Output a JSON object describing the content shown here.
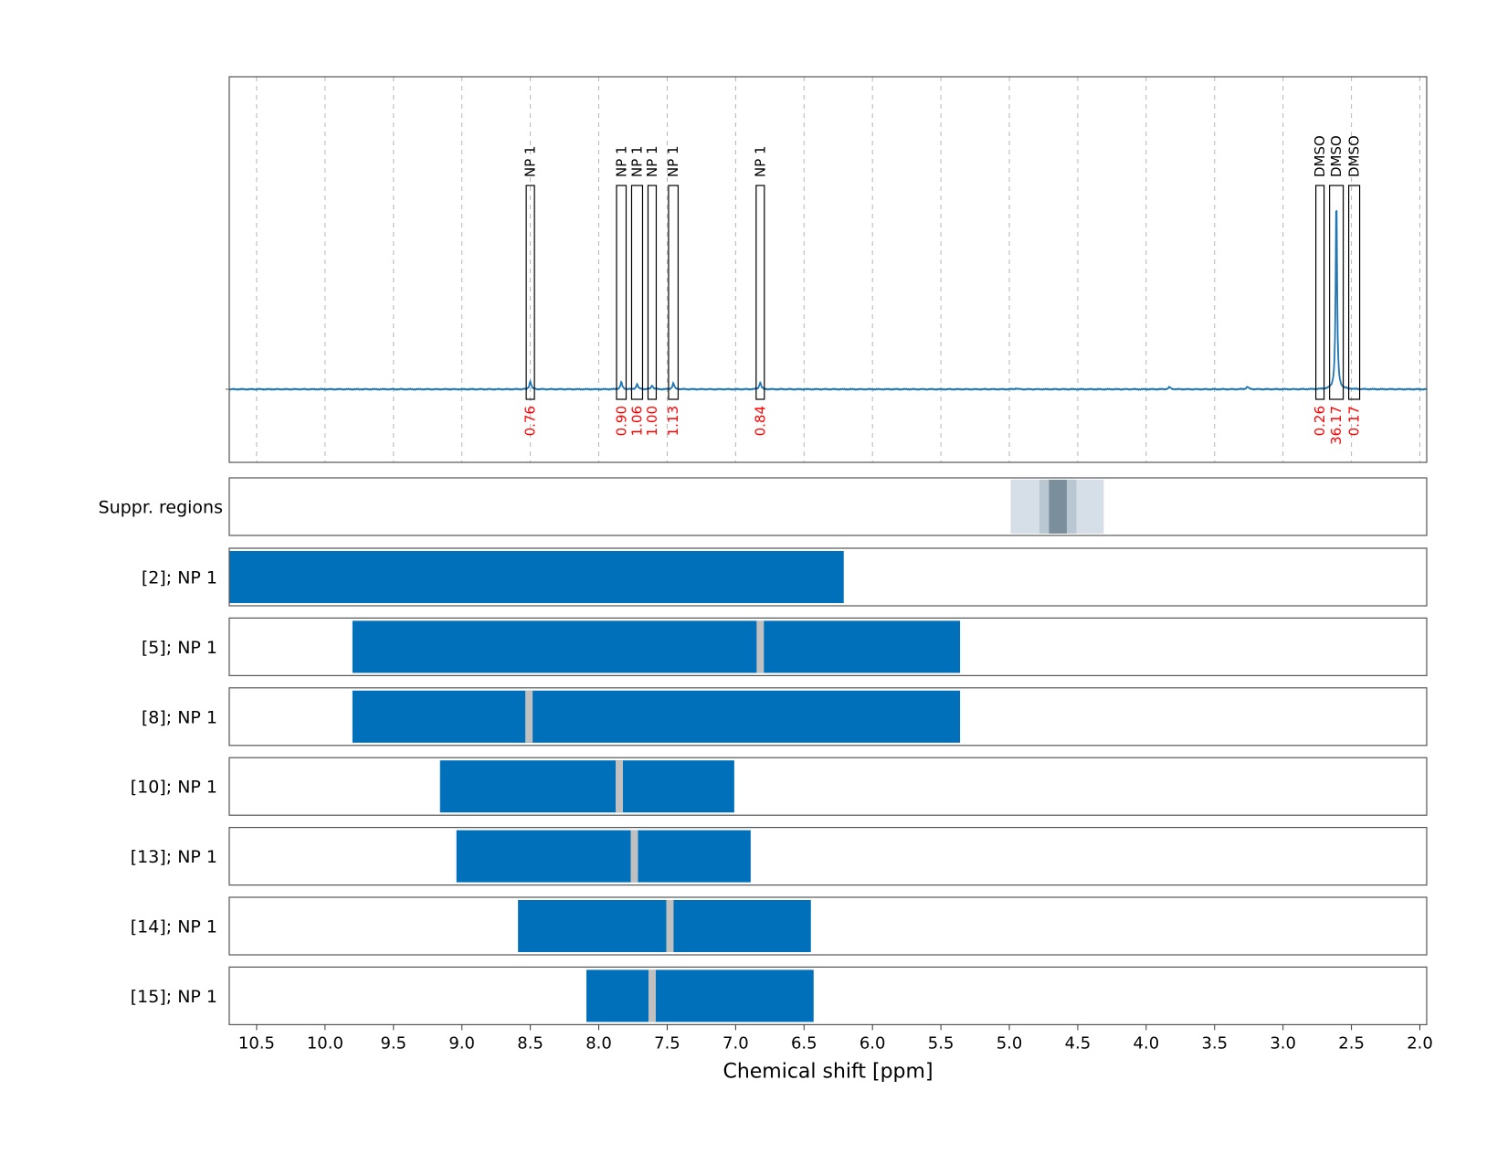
{
  "chart_data": {
    "type": "nmr-spectrum-with-ranges",
    "xlabel": "Chemical shift [ppm]",
    "xlim": [
      10.7,
      1.95
    ],
    "x_ticks": [
      "10.5",
      "10.0",
      "9.5",
      "9.0",
      "8.5",
      "8.0",
      "7.5",
      "7.0",
      "6.5",
      "6.0",
      "5.5",
      "5.0",
      "4.5",
      "4.0",
      "3.5",
      "3.0",
      "2.5",
      "2.0"
    ],
    "x_tick_values": [
      10.5,
      10.0,
      9.5,
      9.0,
      8.5,
      8.0,
      7.5,
      7.0,
      6.5,
      6.0,
      5.5,
      5.0,
      4.5,
      4.0,
      3.5,
      3.0,
      2.5,
      2.0
    ],
    "grid": "vertical-dashed",
    "spectrum_color": "#1f77b4",
    "peaks": [
      {
        "label": "NP 1",
        "x_from": 8.53,
        "x_to": 8.47,
        "integral": "0.76",
        "height": 0.04
      },
      {
        "label": "NP 1",
        "x_from": 7.87,
        "x_to": 7.8,
        "integral": "0.90",
        "height": 0.035
      },
      {
        "label": "NP 1",
        "x_from": 7.76,
        "x_to": 7.68,
        "integral": "1.06",
        "height": 0.025
      },
      {
        "label": "NP 1",
        "x_from": 7.64,
        "x_to": 7.58,
        "integral": "1.00",
        "height": 0.02
      },
      {
        "label": "NP 1",
        "x_from": 7.49,
        "x_to": 7.42,
        "integral": "1.13",
        "height": 0.03
      },
      {
        "label": "NP 1",
        "x_from": 6.85,
        "x_to": 6.79,
        "integral": "0.84",
        "height": 0.035
      },
      {
        "label": "DMSO",
        "x_from": 2.76,
        "x_to": 2.7,
        "integral": "0.26",
        "height": 0.0
      },
      {
        "label": "DMSO",
        "x_from": 2.66,
        "x_to": 2.56,
        "integral": "36.17",
        "height": 1.0
      },
      {
        "label": "DMSO",
        "x_from": 2.52,
        "x_to": 2.44,
        "integral": "0.17",
        "height": 0.0
      }
    ],
    "minor_peaks": [
      {
        "x": 4.95,
        "height": 0.004
      },
      {
        "x": 3.83,
        "height": 0.01
      },
      {
        "x": 3.26,
        "height": 0.012
      }
    ],
    "suppression": {
      "label": "Suppr. regions",
      "regions": [
        {
          "x_from": 4.99,
          "x_to": 4.31,
          "color": "#d6dfe7"
        },
        {
          "x_from": 4.78,
          "x_to": 4.51,
          "color": "#b9c7d2"
        },
        {
          "x_from": 4.71,
          "x_to": 4.58,
          "color": "#7a8e9c"
        }
      ]
    },
    "rows": [
      {
        "label": "[2]; NP 1",
        "x_from": 10.7,
        "x_to": 6.21,
        "markers": []
      },
      {
        "label": "[5]; NP 1",
        "x_from": 9.8,
        "x_to": 5.36,
        "markers": [
          6.82
        ]
      },
      {
        "label": "[8]; NP 1",
        "x_from": 9.8,
        "x_to": 5.36,
        "markers": [
          8.51
        ]
      },
      {
        "label": "[10]; NP 1",
        "x_from": 9.16,
        "x_to": 7.01,
        "markers": [
          7.85
        ]
      },
      {
        "label": "[13]; NP 1",
        "x_from": 9.04,
        "x_to": 6.89,
        "markers": [
          7.74
        ]
      },
      {
        "label": "[14]; NP 1",
        "x_from": 8.59,
        "x_to": 6.45,
        "markers": [
          7.48
        ]
      },
      {
        "label": "[15]; NP 1",
        "x_from": 8.09,
        "x_to": 6.43,
        "markers": [
          7.61
        ]
      }
    ],
    "bar_color": "#0070bb",
    "marker_color": "#c0c0c0"
  }
}
